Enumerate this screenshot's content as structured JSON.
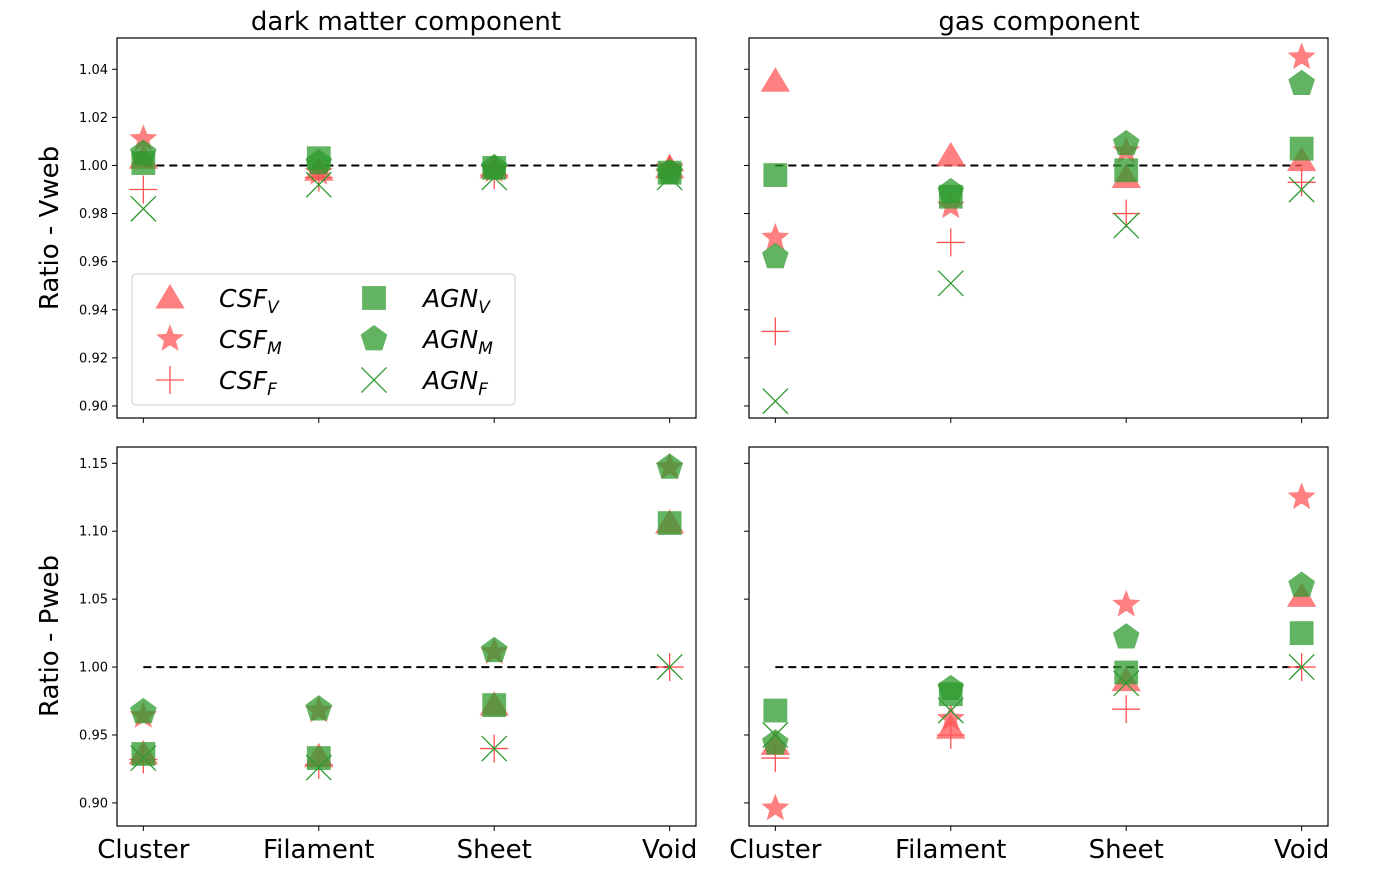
{
  "figure": {
    "left_title": "dark matter component",
    "right_title": "gas component",
    "top_ylabel": "Ratio - Vweb",
    "bottom_ylabel": "Ratio - Pweb"
  },
  "categories": [
    "Cluster",
    "Filament",
    "Sheet",
    "Void"
  ],
  "colors": {
    "csf": "#ff5555",
    "agn": "#2e9a2e"
  },
  "legend": [
    {
      "key": "CSF_V",
      "base": "CSF",
      "sub": "V",
      "marker": "triangle",
      "color": "csf"
    },
    {
      "key": "CSF_M",
      "base": "CSF",
      "sub": "M",
      "marker": "star",
      "color": "csf"
    },
    {
      "key": "CSF_F",
      "base": "CSF",
      "sub": "F",
      "marker": "plus",
      "color": "csf"
    },
    {
      "key": "AGN_V",
      "base": "AGN",
      "sub": "V",
      "marker": "square",
      "color": "agn"
    },
    {
      "key": "AGN_M",
      "base": "AGN",
      "sub": "M",
      "marker": "pentagon",
      "color": "agn"
    },
    {
      "key": "AGN_F",
      "base": "AGN",
      "sub": "F",
      "marker": "cross",
      "color": "agn"
    }
  ],
  "chart_data": [
    {
      "type": "scatter",
      "panel": "dm-vweb",
      "title": "dark matter component",
      "ylabel": "Ratio - Vweb",
      "ylim": [
        0.895,
        1.053
      ],
      "yticks": [
        0.9,
        0.92,
        0.94,
        0.96,
        0.98,
        1.0,
        1.02,
        1.04
      ],
      "ytick_labels": [
        "0.90",
        "0.92",
        "0.94",
        "0.96",
        "0.98",
        "1.00",
        "1.02",
        "1.04"
      ],
      "reference_line": 1.0,
      "legend": "lower-left",
      "series": [
        {
          "key": "CSF_V",
          "values": [
            1.003,
            0.998,
            0.999,
            0.999
          ]
        },
        {
          "key": "CSF_M",
          "values": [
            1.011,
            0.997,
            0.998,
            0.999
          ]
        },
        {
          "key": "CSF_F",
          "values": [
            0.99,
            0.995,
            0.996,
            0.998
          ]
        },
        {
          "key": "AGN_V",
          "values": [
            1.001,
            1.003,
            0.999,
            0.997
          ]
        },
        {
          "key": "AGN_M",
          "values": [
            1.005,
            1.001,
            0.999,
            0.997
          ]
        },
        {
          "key": "AGN_F",
          "values": [
            0.982,
            0.992,
            0.995,
            0.995
          ]
        }
      ]
    },
    {
      "type": "scatter",
      "panel": "gas-vweb",
      "title": "gas component",
      "ylim": [
        0.895,
        1.053
      ],
      "yticks": [
        0.9,
        0.92,
        0.94,
        0.96,
        0.98,
        1.0,
        1.02,
        1.04
      ],
      "reference_line": 1.0,
      "series": [
        {
          "key": "CSF_V",
          "values": [
            1.035,
            1.004,
            0.995,
            1.002
          ]
        },
        {
          "key": "CSF_M",
          "values": [
            0.97,
            0.983,
            1.006,
            1.045
          ]
        },
        {
          "key": "CSF_F",
          "values": [
            0.931,
            0.968,
            0.98,
            0.993
          ]
        },
        {
          "key": "AGN_V",
          "values": [
            0.996,
            0.987,
            0.998,
            1.007
          ]
        },
        {
          "key": "AGN_M",
          "values": [
            0.962,
            0.989,
            1.009,
            1.034
          ]
        },
        {
          "key": "AGN_F",
          "values": [
            0.902,
            0.951,
            0.975,
            0.99
          ]
        }
      ]
    },
    {
      "type": "scatter",
      "panel": "dm-pweb",
      "ylabel": "Ratio - Pweb",
      "ylim": [
        0.883,
        1.162
      ],
      "yticks": [
        0.9,
        0.95,
        1.0,
        1.05,
        1.1,
        1.15
      ],
      "ytick_labels": [
        "0.90",
        "0.95",
        "1.00",
        "1.05",
        "1.10",
        "1.15"
      ],
      "reference_line": 1.0,
      "series": [
        {
          "key": "CSF_V",
          "values": [
            0.936,
            0.934,
            0.972,
            1.106
          ]
        },
        {
          "key": "CSF_M",
          "values": [
            0.964,
            0.968,
            1.011,
            1.147
          ]
        },
        {
          "key": "CSF_F",
          "values": [
            0.932,
            0.928,
            0.94,
            1.0
          ]
        },
        {
          "key": "AGN_V",
          "values": [
            0.936,
            0.933,
            0.972,
            1.106
          ]
        },
        {
          "key": "AGN_M",
          "values": [
            0.967,
            0.969,
            1.012,
            1.147
          ]
        },
        {
          "key": "AGN_F",
          "values": [
            0.933,
            0.926,
            0.94,
            1.0
          ]
        }
      ]
    },
    {
      "type": "scatter",
      "panel": "gas-pweb",
      "ylim": [
        0.883,
        1.162
      ],
      "yticks": [
        0.9,
        0.95,
        1.0,
        1.05,
        1.1,
        1.15
      ],
      "reference_line": 1.0,
      "series": [
        {
          "key": "CSF_V",
          "values": [
            0.943,
            0.955,
            0.99,
            1.052
          ]
        },
        {
          "key": "CSF_M",
          "values": [
            0.896,
            0.962,
            1.046,
            1.125
          ]
        },
        {
          "key": "CSF_F",
          "values": [
            0.933,
            0.95,
            0.969,
            1.0
          ]
        },
        {
          "key": "AGN_V",
          "values": [
            0.968,
            0.98,
            0.996,
            1.025
          ]
        },
        {
          "key": "AGN_M",
          "values": [
            0.944,
            0.984,
            1.022,
            1.06
          ]
        },
        {
          "key": "AGN_F",
          "values": [
            0.95,
            0.968,
            0.988,
            1.0
          ]
        }
      ]
    }
  ]
}
